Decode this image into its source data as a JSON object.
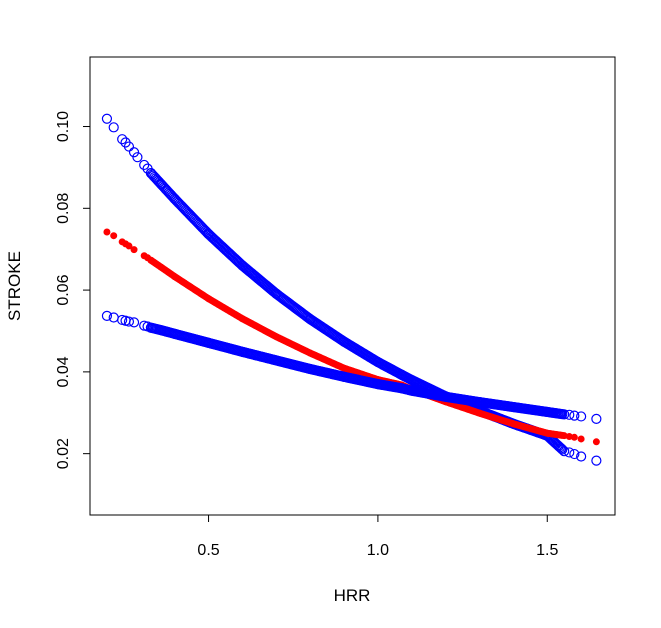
{
  "chart_data": {
    "type": "scatter",
    "title": "",
    "xlabel": "HRR",
    "ylabel": "STROKE",
    "xlim": [
      0.15,
      1.7
    ],
    "ylim": [
      0.005,
      0.117
    ],
    "x_ticks": [
      0.5,
      1.0,
      1.5
    ],
    "x_tick_labels": [
      "0.5",
      "1.0",
      "1.5"
    ],
    "y_ticks": [
      0.02,
      0.04,
      0.06,
      0.08,
      0.1
    ],
    "y_tick_labels": [
      "0.02",
      "0.04",
      "0.06",
      "0.08",
      "0.10"
    ],
    "grid": false,
    "legend": "none",
    "colors": {
      "upper": "#0000ff",
      "estimate": "#ff0000",
      "lower": "#0000ff"
    },
    "series": [
      {
        "marker": "open-circle",
        "color": "#0000ff",
        "x": [
          0.2,
          0.22,
          0.245,
          0.255,
          0.265,
          0.28,
          0.29,
          0.31,
          0.32,
          0.33,
          0.36,
          0.4,
          0.5,
          0.6,
          0.7,
          0.8,
          0.9,
          1.0,
          1.07,
          1.1,
          1.2,
          1.3,
          1.4,
          1.5,
          1.55,
          1.565,
          1.58,
          1.6,
          1.645
        ],
        "y": [
          0.1019,
          0.0998,
          0.0969,
          0.0961,
          0.0951,
          0.0937,
          0.0925,
          0.0906,
          0.0897,
          0.0886,
          0.0859,
          0.0823,
          0.0737,
          0.066,
          0.0591,
          0.0529,
          0.0474,
          0.0424,
          0.0393,
          0.038,
          0.034,
          0.0305,
          0.0273,
          0.0244,
          0.0206,
          0.0203,
          0.0199,
          0.0193,
          0.0183
        ]
      },
      {
        "marker": "filled-circle",
        "color": "#ff0000",
        "x": [
          0.2,
          0.22,
          0.245,
          0.255,
          0.265,
          0.28,
          0.31,
          0.32,
          0.33,
          0.36,
          0.4,
          0.5,
          0.6,
          0.7,
          0.8,
          0.9,
          1.0,
          1.07,
          1.1,
          1.2,
          1.3,
          1.4,
          1.5,
          1.55,
          1.565,
          1.58,
          1.6,
          1.645
        ],
        "y": [
          0.0742,
          0.0733,
          0.0718,
          0.0713,
          0.0708,
          0.0699,
          0.0684,
          0.0679,
          0.0673,
          0.0656,
          0.0633,
          0.0579,
          0.053,
          0.0486,
          0.0446,
          0.0409,
          0.0381,
          0.0368,
          0.0357,
          0.0327,
          0.0299,
          0.0273,
          0.025,
          0.0244,
          0.0242,
          0.024,
          0.0236,
          0.0229
        ]
      },
      {
        "marker": "open-circle",
        "color": "#0000ff",
        "x": [
          0.2,
          0.22,
          0.245,
          0.255,
          0.265,
          0.28,
          0.31,
          0.32,
          0.33,
          0.36,
          0.4,
          0.5,
          0.6,
          0.7,
          0.8,
          0.9,
          1.0,
          1.07,
          1.1,
          1.2,
          1.3,
          1.4,
          1.5,
          1.55,
          1.565,
          1.58,
          1.6,
          1.645
        ],
        "y": [
          0.0537,
          0.0533,
          0.0527,
          0.0525,
          0.0523,
          0.0521,
          0.0513,
          0.0511,
          0.0508,
          0.0502,
          0.0493,
          0.0471,
          0.0449,
          0.0428,
          0.0407,
          0.0388,
          0.037,
          0.036,
          0.0354,
          0.0339,
          0.0326,
          0.0314,
          0.0302,
          0.0296,
          0.0295,
          0.0293,
          0.0291,
          0.0285
        ]
      }
    ]
  }
}
